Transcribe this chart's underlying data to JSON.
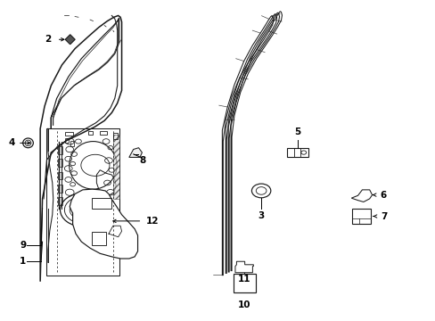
{
  "background": "#ffffff",
  "line_color": "#1a1a1a",
  "text_color": "#000000",
  "figsize": [
    4.89,
    3.6
  ],
  "dpi": 100,
  "door_outer": {
    "x": [
      0.08,
      0.08,
      0.09,
      0.105,
      0.125,
      0.155,
      0.185,
      0.215,
      0.245,
      0.265,
      0.275,
      0.285,
      0.29,
      0.295,
      0.3,
      0.295,
      0.275,
      0.245,
      0.185,
      0.125,
      0.09,
      0.08
    ],
    "y": [
      0.1,
      0.58,
      0.66,
      0.73,
      0.8,
      0.855,
      0.895,
      0.925,
      0.945,
      0.955,
      0.958,
      0.955,
      0.945,
      0.925,
      0.88,
      0.84,
      0.8,
      0.76,
      0.7,
      0.63,
      0.52,
      0.1
    ]
  },
  "weatherstrip_outer": {
    "x": [
      0.5,
      0.5,
      0.515,
      0.535,
      0.56,
      0.582,
      0.6,
      0.613,
      0.622,
      0.628,
      0.63,
      0.628,
      0.62,
      0.608,
      0.592,
      0.572,
      0.55,
      0.525,
      0.502,
      0.5
    ],
    "y": [
      0.13,
      0.6,
      0.675,
      0.745,
      0.82,
      0.875,
      0.915,
      0.942,
      0.96,
      0.968,
      0.965,
      0.95,
      0.928,
      0.9,
      0.862,
      0.818,
      0.765,
      0.695,
      0.615,
      0.6
    ]
  },
  "weatherstrip_inner": {
    "x": [
      0.515,
      0.515,
      0.527,
      0.544,
      0.566,
      0.585,
      0.6,
      0.611,
      0.618,
      0.622,
      0.624,
      0.622,
      0.615,
      0.604,
      0.59,
      0.573,
      0.554,
      0.532,
      0.515
    ],
    "y": [
      0.15,
      0.595,
      0.665,
      0.73,
      0.805,
      0.858,
      0.896,
      0.922,
      0.939,
      0.946,
      0.944,
      0.93,
      0.91,
      0.884,
      0.849,
      0.808,
      0.757,
      0.69,
      0.61
    ]
  }
}
